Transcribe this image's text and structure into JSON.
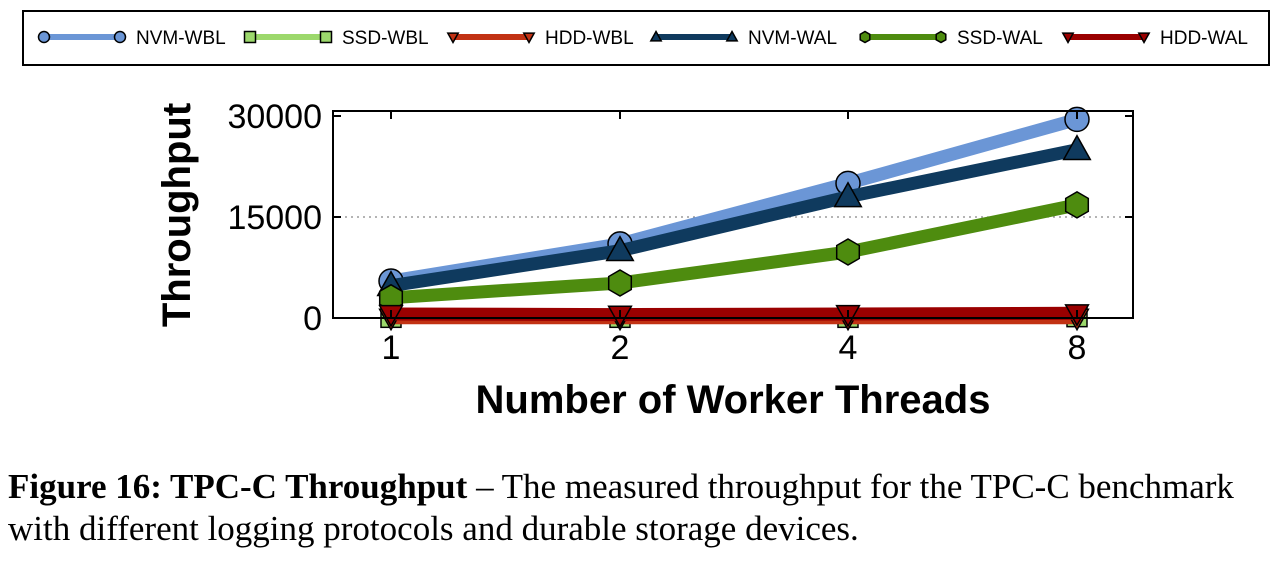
{
  "chart_data": {
    "type": "line",
    "x": [
      "1",
      "2",
      "4",
      "8"
    ],
    "xlabel": "Number of Worker Threads",
    "ylabel": "Throughput",
    "ylim": [
      0,
      30000
    ],
    "yticks": [
      "0",
      "15000",
      "30000"
    ],
    "grid": "horizontal dotted at 15000",
    "legend_placement": "top, outside",
    "series": [
      {
        "name": "NVM-WBL",
        "values": [
          5500,
          11000,
          20000,
          29500
        ],
        "color": "#6b96d6",
        "marker": "circle"
      },
      {
        "name": "SSD-WBL",
        "values": [
          100,
          100,
          100,
          200
        ],
        "color": "#9cd86c",
        "marker": "square"
      },
      {
        "name": "HDD-WBL",
        "values": [
          50,
          50,
          50,
          50
        ],
        "color": "#c23214",
        "marker": "triangle-down"
      },
      {
        "name": "NVM-WAL",
        "values": [
          4800,
          10000,
          18000,
          25000
        ],
        "color": "#0f3a5e",
        "marker": "triangle-up"
      },
      {
        "name": "SSD-WAL",
        "values": [
          3000,
          5200,
          9800,
          16800
        ],
        "color": "#4e8c0f",
        "marker": "hexagon"
      },
      {
        "name": "HDD-WAL",
        "values": [
          600,
          500,
          600,
          700
        ],
        "color": "#9a0000",
        "marker": "triangle-down"
      }
    ]
  },
  "caption": {
    "bold": "Figure 16: TPC-C Throughput",
    "text": " – The measured throughput for the TPC-C benchmark with different logging protocols and durable storage devices."
  }
}
